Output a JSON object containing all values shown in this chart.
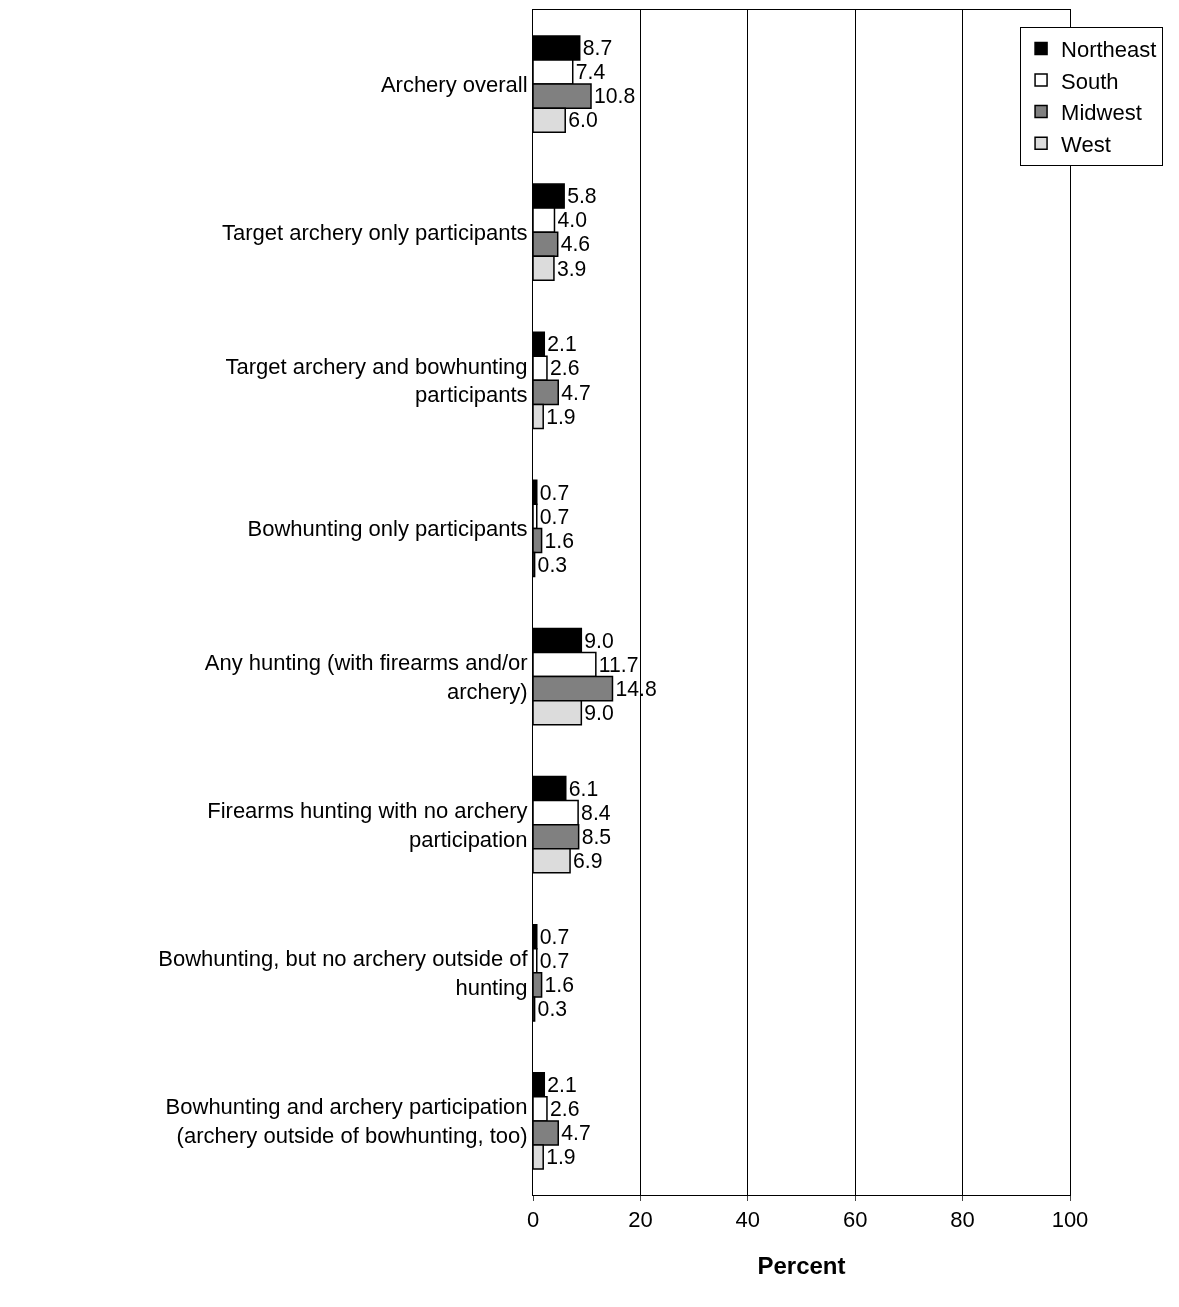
{
  "chart_data": {
    "type": "bar",
    "orientation": "horizontal",
    "xlabel": "Percent",
    "categories": [
      "Archery overall",
      "Target archery only participants",
      "Target archery and bowhunting participants",
      "Bowhunting only participants",
      "Any hunting (with firearms and/or archery)",
      "Firearms hunting with no archery participation",
      "Bowhunting, but no archery outside of hunting",
      "Bowhunting and archery participation (archery outside of bowhunting, too)"
    ],
    "series": [
      {
        "name": "Northeast",
        "color": "#000000",
        "values": [
          8.7,
          5.8,
          2.1,
          0.7,
          9,
          6.1,
          0.7,
          2.1
        ],
        "value_labels": [
          "8.7",
          "5.8",
          "2.1",
          "0.7",
          "9.0",
          "6.1",
          "0.7",
          "2.1"
        ]
      },
      {
        "name": "South",
        "color": "#ffffff",
        "values": [
          7.4,
          4,
          2.6,
          0.7,
          11.7,
          8.4,
          0.7,
          2.6
        ],
        "value_labels": [
          "7.4",
          "4.0",
          "2.6",
          "0.7",
          "11.7",
          "8.4",
          "0.7",
          "2.6"
        ]
      },
      {
        "name": "Midwest",
        "color": "#808080",
        "values": [
          10.8,
          4.6,
          4.7,
          1.6,
          14.8,
          8.5,
          1.6,
          4.7
        ],
        "value_labels": [
          "10.8",
          "4.6",
          "4.7",
          "1.6",
          "14.8",
          "8.5",
          "1.6",
          "4.7"
        ]
      },
      {
        "name": "West",
        "color": "#dcdcdc",
        "values": [
          6,
          3.9,
          1.9,
          0.3,
          9,
          6.9,
          0.3,
          1.9
        ],
        "value_labels": [
          "6.0",
          "3.9",
          "1.9",
          "0.3",
          "9.0",
          "6.9",
          "0.3",
          "1.9"
        ]
      }
    ],
    "xlim": [
      0,
      100
    ],
    "xticks": [
      0,
      20,
      40,
      60,
      80,
      100
    ],
    "grid": "x",
    "legend": "top right"
  }
}
